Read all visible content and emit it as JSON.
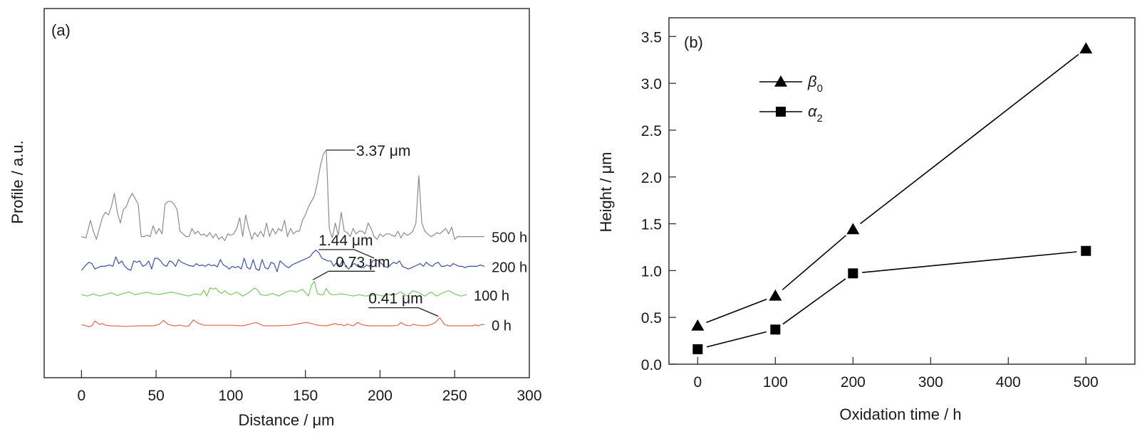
{
  "chart_data": [
    {
      "panel_label": "(a)",
      "type": "line",
      "title": "",
      "xlabel": "Distance / μm",
      "ylabel": "Profile / a.u.",
      "xlim": [
        -25,
        300
      ],
      "xticks": [
        0,
        50,
        100,
        150,
        200,
        250,
        300
      ],
      "grid": false,
      "series": [
        {
          "name": "500 h",
          "color": "#8c8c8c",
          "offset": 3.3,
          "annotation": "3.37 μm",
          "peak_x": 168,
          "x": [
            0,
            3,
            6,
            8,
            10,
            12,
            14,
            16,
            18,
            20,
            22,
            24,
            26,
            28,
            30,
            32,
            34,
            36,
            38,
            40,
            42,
            44,
            46,
            48,
            50,
            52,
            54,
            56,
            58,
            60,
            62,
            64,
            66,
            68,
            70,
            72,
            74,
            76,
            78,
            80,
            82,
            84,
            86,
            88,
            90,
            92,
            94,
            96,
            98,
            100,
            102,
            104,
            106,
            108,
            110,
            112,
            114,
            116,
            118,
            120,
            122,
            124,
            126,
            128,
            130,
            132,
            134,
            136,
            138,
            140,
            142,
            144,
            146,
            148,
            150,
            152,
            154,
            156,
            158,
            160,
            162,
            164,
            166,
            168,
            170,
            172,
            174,
            176,
            178,
            180,
            182,
            184,
            186,
            188,
            190,
            192,
            194,
            196,
            198,
            200,
            202,
            204,
            206,
            208,
            210,
            212,
            214,
            216,
            218,
            220,
            222,
            224,
            226,
            228,
            230,
            232,
            234,
            236,
            238,
            240,
            242,
            244,
            246,
            248,
            250,
            252,
            254,
            256,
            258,
            260,
            262,
            264,
            266,
            268,
            270
          ],
          "y": [
            0.0,
            -0.05,
            0.6,
            0.2,
            -0.1,
            0.3,
            0.7,
            0.9,
            0.8,
            1.1,
            1.6,
            0.9,
            0.5,
            1.0,
            1.1,
            1.4,
            1.6,
            1.4,
            1.2,
            0.0,
            0.0,
            0.05,
            0.0,
            0.4,
            0.1,
            0.3,
            0.1,
            1.2,
            1.3,
            1.3,
            1.2,
            1.0,
            0.2,
            0.1,
            0.0,
            0.0,
            0.3,
            0.1,
            0.2,
            0.05,
            0.1,
            0.0,
            0.15,
            -0.05,
            0.1,
            -0.1,
            0.0,
            -0.15,
            0.1,
            0.05,
            0.1,
            0.3,
            0.7,
            0.0,
            0.8,
            0.3,
            -0.1,
            0.15,
            0.0,
            0.2,
            0.0,
            0.5,
            0.0,
            0.3,
            0.1,
            0.3,
            0.2,
            0.6,
            0.0,
            0.3,
            0.1,
            0.2,
            0.2,
            0.6,
            0.8,
            1.1,
            1.3,
            1.5,
            2.0,
            2.6,
            3.05,
            3.2,
            0.3,
            -0.05,
            0.5,
            0.05,
            0.9,
            0.2,
            0.15,
            0.0,
            0.3,
            0.1,
            0.2,
            0.2,
            0.1,
            0.5,
            0.3,
            0.0,
            -0.1,
            0.1,
            0.0,
            0.1,
            0.1,
            0.05,
            0.0,
            0.2,
            -0.05,
            0.15,
            0.05,
            0.1,
            0.2,
            0.5,
            2.25,
            0.5,
            0.2,
            0.1,
            0.0,
            0.05,
            0.15,
            0.1,
            0.2,
            0.3,
            0.1,
            0.35,
            -0.1,
            0.0,
            0.0,
            0.0,
            0.0,
            0.0,
            0.0,
            0.0,
            0.0,
            0.0,
            0.0
          ]
        },
        {
          "name": "200 h",
          "color": "#3b50a8",
          "offset": 2.1,
          "annotation": "1.44 μm",
          "peak_x": 196,
          "x": [
            0,
            3,
            5,
            7,
            9,
            11,
            13,
            15,
            17,
            19,
            21,
            23,
            25,
            27,
            29,
            31,
            33,
            35,
            37,
            39,
            41,
            43,
            45,
            47,
            49,
            51,
            53,
            55,
            57,
            59,
            61,
            63,
            65,
            67,
            69,
            71,
            73,
            75,
            77,
            79,
            81,
            83,
            85,
            87,
            89,
            91,
            93,
            95,
            97,
            99,
            101,
            103,
            105,
            107,
            109,
            111,
            113,
            115,
            117,
            119,
            121,
            123,
            125,
            127,
            129,
            131,
            133,
            135,
            137,
            139,
            141,
            143,
            145,
            147,
            149,
            151,
            153,
            155,
            157,
            159,
            161,
            163,
            165,
            167,
            169,
            171,
            173,
            175,
            177,
            179,
            181,
            183,
            185,
            187,
            189,
            191,
            193,
            195,
            197,
            199,
            201,
            203,
            205,
            207,
            209,
            211,
            213,
            215,
            217,
            219,
            221,
            223,
            225,
            227,
            229,
            231,
            233,
            235,
            237,
            239,
            241,
            243,
            245,
            247,
            249,
            251,
            253,
            255,
            257,
            259,
            261,
            263,
            265,
            267,
            270
          ],
          "y": [
            -0.05,
            0.15,
            0.25,
            0.2,
            0.0,
            0.05,
            0.1,
            0.1,
            0.12,
            0.15,
            0.1,
            0.45,
            0.2,
            0.3,
            0.1,
            0.0,
            -0.05,
            0.3,
            0.25,
            0.3,
            0.1,
            0.15,
            0.3,
            0.0,
            0.4,
            0.4,
            0.3,
            0.15,
            0.1,
            0.3,
            0.25,
            0.1,
            0.35,
            0.25,
            0.2,
            0.15,
            0.12,
            0.1,
            0.2,
            0.12,
            0.15,
            0.1,
            0.18,
            0.12,
            0.15,
            0.08,
            0.35,
            0.15,
            0.1,
            0.0,
            0.1,
            0.05,
            0.1,
            0.0,
            0.4,
            0.05,
            0.0,
            0.35,
            0.0,
            -0.05,
            0.35,
            0.05,
            0.0,
            0.25,
            0.2,
            -0.1,
            0.3,
            0.2,
            0.1,
            0.05,
            0.15,
            0.2,
            0.25,
            0.3,
            0.35,
            0.4,
            0.45,
            0.6,
            0.7,
            0.6,
            0.4,
            0.35,
            0.3,
            0.3,
            0.1,
            0.25,
            0.1,
            0.35,
            0.1,
            0.0,
            0.15,
            0.2,
            0.1,
            0.05,
            0.05,
            0.15,
            0.1,
            0.3,
            0.35,
            0.3,
            0.2,
            0.1,
            0.05,
            0.15,
            0.25,
            0.2,
            0.3,
            0.1,
            0.05,
            0.0,
            0.05,
            0.1,
            0.15,
            0.2,
            0.1,
            0.25,
            0.15,
            0.1,
            0.2,
            0.25,
            0.1,
            0.1,
            0.15,
            0.1,
            0.2,
            0.15,
            0.1,
            0.1,
            0.05,
            0.1,
            0.1,
            0.1,
            0.1,
            0.15,
            0.1
          ]
        },
        {
          "name": "100 h",
          "color": "#79c864",
          "offset": 1.1,
          "annotation": "0.73 μm",
          "peak_x": 157,
          "x": [
            0,
            4,
            8,
            12,
            16,
            20,
            24,
            28,
            32,
            36,
            40,
            44,
            48,
            52,
            56,
            60,
            64,
            68,
            72,
            76,
            80,
            82,
            84,
            86,
            88,
            90,
            92,
            94,
            96,
            98,
            100,
            104,
            108,
            112,
            116,
            118,
            120,
            124,
            128,
            132,
            136,
            140,
            144,
            148,
            150,
            152,
            154,
            156,
            158,
            160,
            162,
            164,
            166,
            168,
            170,
            174,
            178,
            182,
            186,
            190,
            194,
            198,
            202,
            206,
            210,
            214,
            218,
            222,
            226,
            230,
            234,
            238,
            242,
            246,
            250,
            254,
            258
          ],
          "y": [
            0.05,
            0.0,
            0.08,
            0.0,
            0.06,
            0.12,
            0.02,
            0.1,
            0.15,
            0.05,
            0.1,
            0.14,
            0.08,
            0.06,
            0.1,
            0.15,
            0.1,
            0.05,
            0.0,
            0.08,
            0.05,
            0.22,
            0.0,
            0.3,
            0.25,
            0.3,
            0.15,
            0.1,
            0.2,
            0.1,
            0.05,
            0.15,
            0.0,
            0.12,
            0.3,
            0.22,
            0.05,
            0.02,
            0.1,
            0.0,
            0.12,
            0.2,
            0.15,
            0.25,
            0.12,
            0.0,
            0.4,
            0.55,
            0.1,
            0.05,
            0.05,
            0.28,
            0.1,
            0.05,
            0.05,
            0.08,
            0.05,
            0.0,
            0.05,
            0.0,
            0.02,
            0.05,
            0.0,
            0.06,
            0.05,
            0.15,
            0.0,
            0.2,
            0.12,
            0.0,
            0.15,
            0.0,
            0.12,
            0.2,
            0.08,
            0.0,
            0.05
          ]
        },
        {
          "name": "0 h",
          "color": "#e06a4b",
          "offset": 0.0,
          "annotation": "0.41 μm",
          "peak_x": 240,
          "x": [
            0,
            2,
            5,
            7,
            9,
            12,
            14,
            16,
            20,
            30,
            40,
            48,
            52,
            55,
            58,
            62,
            66,
            70,
            72,
            75,
            78,
            82,
            90,
            100,
            108,
            112,
            117,
            122,
            130,
            140,
            146,
            150,
            153,
            158,
            164,
            170,
            172,
            174,
            176,
            178,
            182,
            185,
            188,
            192,
            200,
            208,
            212,
            214,
            217,
            220,
            222,
            225,
            230,
            234,
            237,
            240,
            243,
            246,
            250,
            256,
            262,
            264,
            266,
            268,
            270
          ],
          "y": [
            0.04,
            0.02,
            -0.04,
            0.0,
            0.18,
            0.05,
            0.08,
            0.02,
            0.0,
            -0.02,
            0.0,
            0.0,
            0.05,
            0.2,
            0.05,
            0.0,
            0.02,
            -0.02,
            0.0,
            0.22,
            0.1,
            0.02,
            0.02,
            0.02,
            0.0,
            0.05,
            0.12,
            0.0,
            0.0,
            0.02,
            0.08,
            0.12,
            0.1,
            0.02,
            0.0,
            0.08,
            0.04,
            0.05,
            0.0,
            0.06,
            0.0,
            0.12,
            0.04,
            0.0,
            0.0,
            0.0,
            0.02,
            0.12,
            0.02,
            0.0,
            0.05,
            0.02,
            0.0,
            0.04,
            0.12,
            0.3,
            0.05,
            0.0,
            0.0,
            0.0,
            0.0,
            0.04,
            0.0,
            0.05,
            0.04
          ]
        }
      ]
    },
    {
      "panel_label": "(b)",
      "type": "line",
      "title": "",
      "xlabel": "Oxidation time / h",
      "ylabel": "Height / μm",
      "xlim": [
        -37,
        563
      ],
      "ylim": [
        0.0,
        3.7
      ],
      "xticks": [
        0,
        100,
        200,
        300,
        400,
        500
      ],
      "yticks": [
        0.0,
        0.5,
        1.0,
        1.5,
        2.0,
        2.5,
        3.0,
        3.5
      ],
      "ytick_labels": [
        "0.0",
        "0.5",
        "1.0",
        "1.5",
        "2.0",
        "2.5",
        "3.0",
        "3.5"
      ],
      "grid": false,
      "legend_position": "top-left",
      "x": [
        0,
        100,
        200,
        500
      ],
      "series": [
        {
          "name": "β",
          "subscript": "0",
          "marker": "triangle",
          "values": [
            0.41,
            0.73,
            1.44,
            3.37
          ]
        },
        {
          "name": "α",
          "subscript": "2",
          "marker": "square",
          "values": [
            0.16,
            0.37,
            0.97,
            1.21
          ]
        }
      ]
    }
  ]
}
